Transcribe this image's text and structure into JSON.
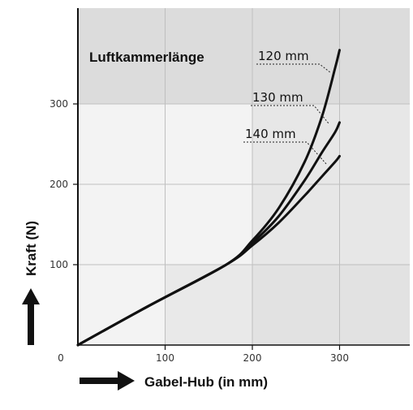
{
  "chart_data": {
    "type": "line",
    "title": "Luftkammerlänge",
    "xlabel": "Gabel-Hub (in mm)",
    "ylabel": "Kraft (N)",
    "xlim": [
      0,
      380
    ],
    "ylim": [
      0,
      420
    ],
    "xticks": [
      0,
      100,
      200,
      300
    ],
    "yticks": [
      100,
      200,
      300
    ],
    "grid": true,
    "series": [
      {
        "name": "120 mm",
        "x": [
          0,
          80,
          170,
          200,
          230,
          260,
          280,
          295,
          300
        ],
        "y": [
          0,
          48,
          100,
          130,
          170,
          228,
          285,
          345,
          367
        ]
      },
      {
        "name": "130 mm",
        "x": [
          0,
          80,
          170,
          200,
          230,
          260,
          280,
          295,
          300
        ],
        "y": [
          0,
          48,
          100,
          127,
          160,
          205,
          240,
          265,
          277
        ]
      },
      {
        "name": "140 mm",
        "x": [
          0,
          80,
          170,
          200,
          230,
          260,
          280,
          295,
          300
        ],
        "y": [
          0,
          48,
          100,
          124,
          152,
          186,
          210,
          228,
          235
        ]
      }
    ],
    "colors": {
      "line": "#111111",
      "bg_light": "#f3f3f3",
      "bg_mid": "#e9e9e9",
      "bg_dark": "#dcdcdc",
      "grid": "#bfbfbf"
    }
  }
}
